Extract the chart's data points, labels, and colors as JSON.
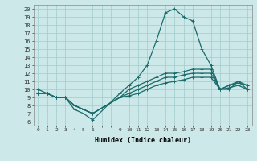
{
  "xlabel": "Humidex (Indice chaleur)",
  "xlim": [
    -0.5,
    23.5
  ],
  "ylim": [
    5.5,
    20.5
  ],
  "yticks": [
    6,
    7,
    8,
    9,
    10,
    11,
    12,
    13,
    14,
    15,
    16,
    17,
    18,
    19,
    20
  ],
  "xticks": [
    0,
    1,
    2,
    3,
    4,
    5,
    6,
    9,
    10,
    11,
    12,
    13,
    14,
    15,
    16,
    17,
    18,
    19,
    20,
    21,
    22,
    23
  ],
  "bg_color": "#cce8e8",
  "line_color": "#1a6b6b",
  "grid_color": "#a0cccc",
  "series": [
    {
      "x": [
        0,
        1,
        2,
        3,
        4,
        5,
        6,
        9,
        10,
        11,
        12,
        13,
        14,
        15,
        16,
        17,
        18,
        19,
        20,
        21,
        22,
        23
      ],
      "y": [
        10,
        9.5,
        9,
        9,
        7.5,
        7,
        6.2,
        9.5,
        10.5,
        11.5,
        13,
        16,
        19.5,
        20,
        19,
        18.5,
        15,
        13,
        10,
        10,
        11,
        10
      ]
    },
    {
      "x": [
        0,
        1,
        2,
        3,
        4,
        5,
        6,
        9,
        10,
        11,
        12,
        13,
        14,
        15,
        16,
        17,
        18,
        19,
        20,
        21,
        22,
        23
      ],
      "y": [
        9.5,
        9.5,
        9,
        9,
        8,
        7.5,
        7,
        9,
        10,
        10.5,
        11,
        11.5,
        12,
        12,
        12.2,
        12.5,
        12.5,
        12.5,
        10,
        10.5,
        11,
        10.5
      ]
    },
    {
      "x": [
        0,
        1,
        2,
        3,
        4,
        5,
        6,
        9,
        10,
        11,
        12,
        13,
        14,
        15,
        16,
        17,
        18,
        19,
        20,
        21,
        22,
        23
      ],
      "y": [
        9.5,
        9.5,
        9,
        9,
        8,
        7.5,
        7,
        9,
        9.5,
        10,
        10.5,
        11,
        11.5,
        11.5,
        11.8,
        12,
        12,
        12,
        10,
        10.5,
        10.8,
        10.5
      ]
    },
    {
      "x": [
        0,
        1,
        2,
        3,
        4,
        5,
        6,
        9,
        10,
        11,
        12,
        13,
        14,
        15,
        16,
        17,
        18,
        19,
        20,
        21,
        22,
        23
      ],
      "y": [
        9.5,
        9.5,
        9,
        9,
        8,
        7.5,
        7,
        9,
        9.2,
        9.5,
        10,
        10.5,
        10.8,
        11,
        11.2,
        11.5,
        11.5,
        11.5,
        10,
        10.2,
        10.5,
        10
      ]
    }
  ]
}
